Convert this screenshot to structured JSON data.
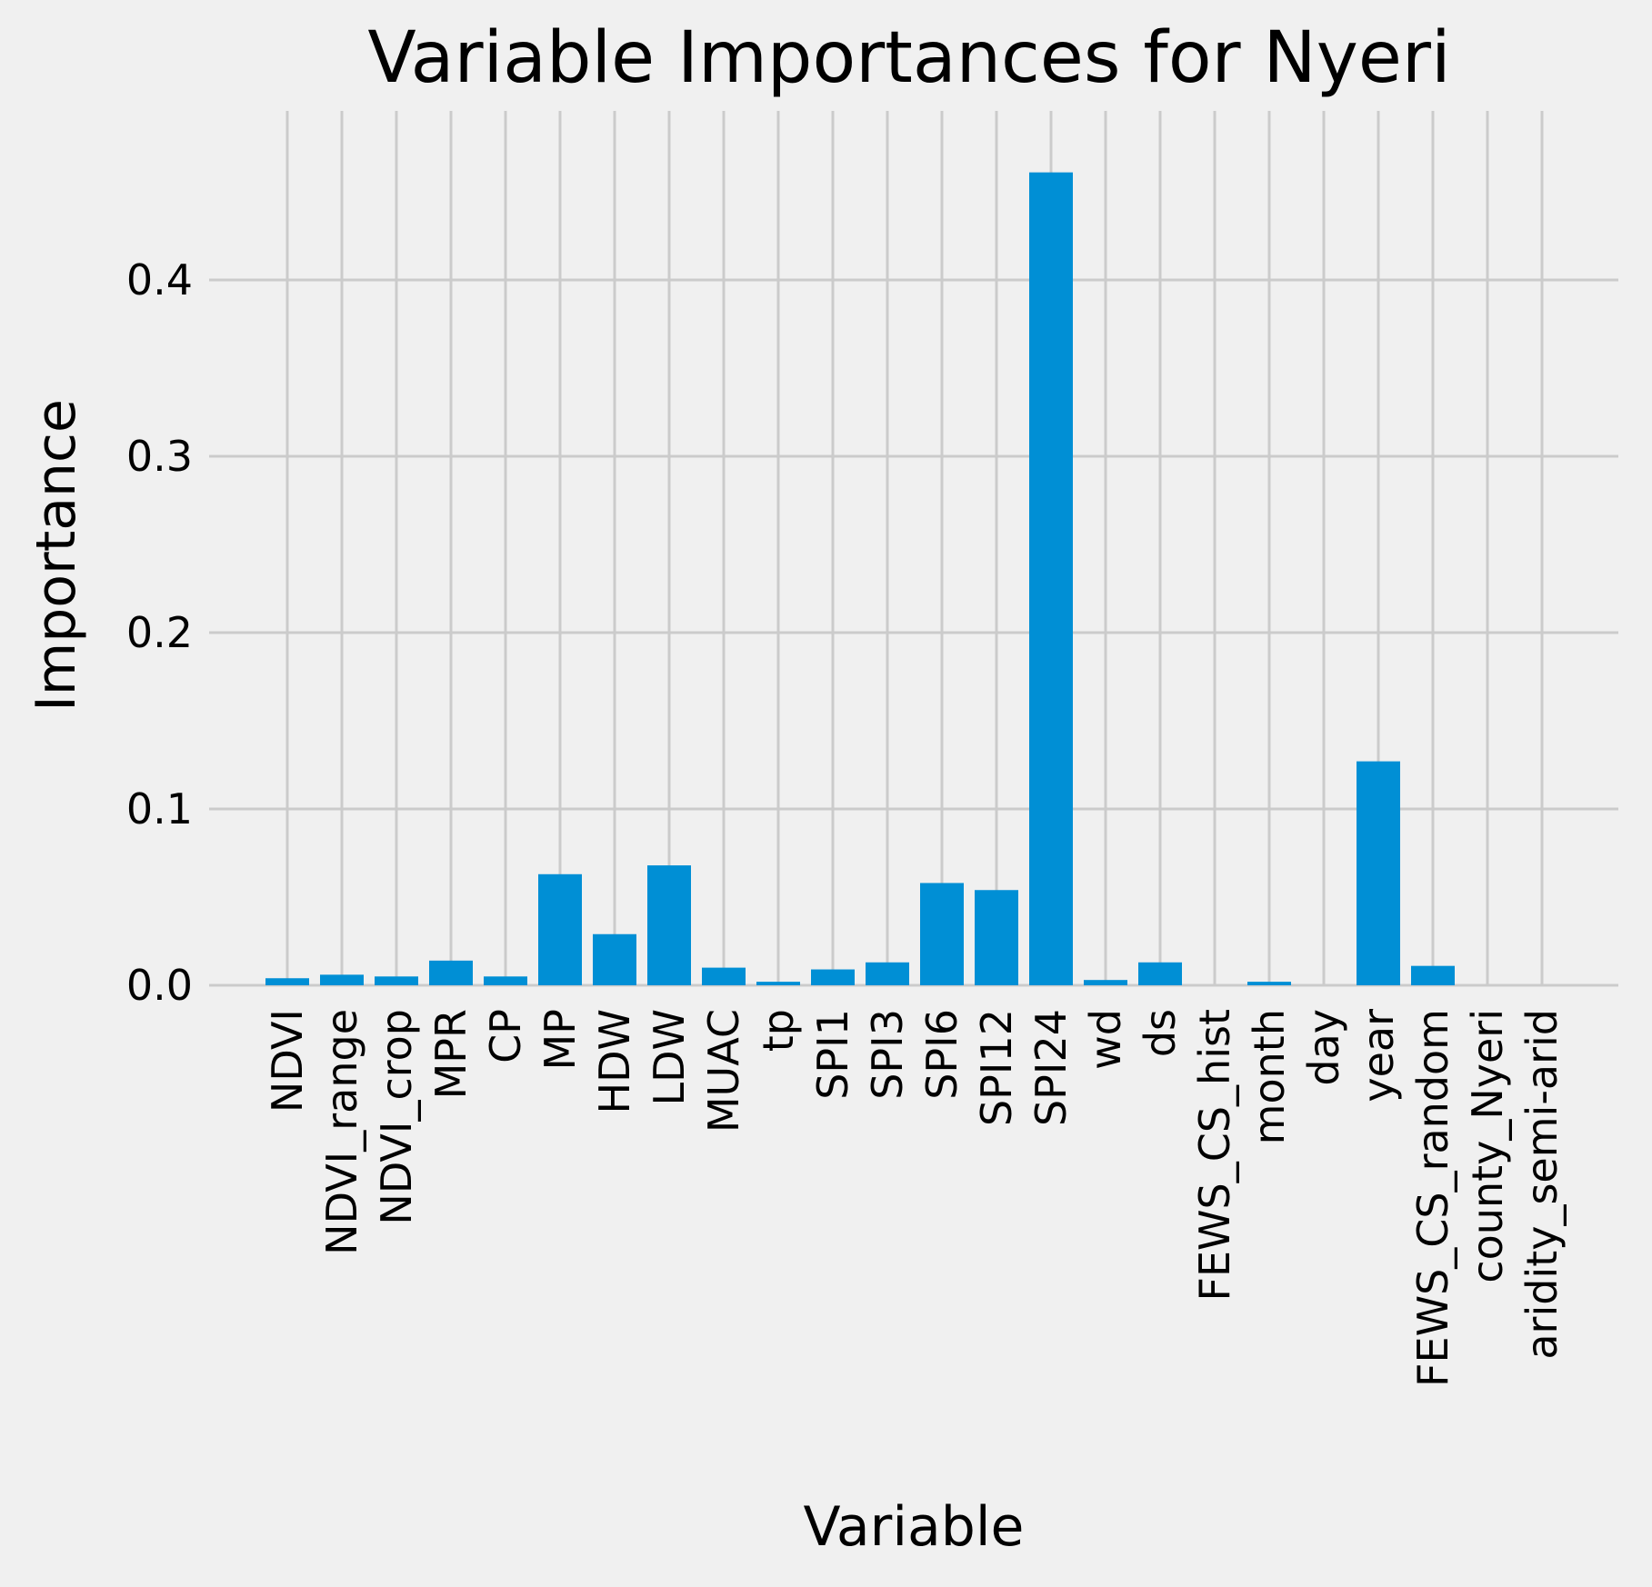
{
  "chart_data": {
    "type": "bar",
    "title": "Variable Importances for Nyeri",
    "xlabel": "Variable",
    "ylabel": "Importance",
    "categories": [
      "NDVI",
      "NDVI_range",
      "NDVI_crop",
      "MPR",
      "CP",
      "MP",
      "HDW",
      "LDW",
      "MUAC",
      "tp",
      "SPI1",
      "SPI3",
      "SPI6",
      "SPI12",
      "SPI24",
      "wd",
      "ds",
      "FEWS_CS_hist",
      "month",
      "day",
      "year",
      "FEWS_CS_random",
      "county_Nyeri",
      "aridity_semi-arid"
    ],
    "values": [
      0.004,
      0.006,
      0.005,
      0.014,
      0.005,
      0.063,
      0.029,
      0.068,
      0.01,
      0.002,
      0.009,
      0.013,
      0.058,
      0.054,
      0.461,
      0.003,
      0.013,
      0.0,
      0.002,
      0.0,
      0.127,
      0.011,
      0.0,
      0.0
    ],
    "yticks": [
      "0.0",
      "0.1",
      "0.2",
      "0.3",
      "0.4"
    ],
    "ylim": [
      0,
      0.48
    ],
    "grid": true,
    "colors": {
      "bar": "#008fd5",
      "background": "#f0f0f0",
      "grid": "#cbcbcb"
    }
  }
}
